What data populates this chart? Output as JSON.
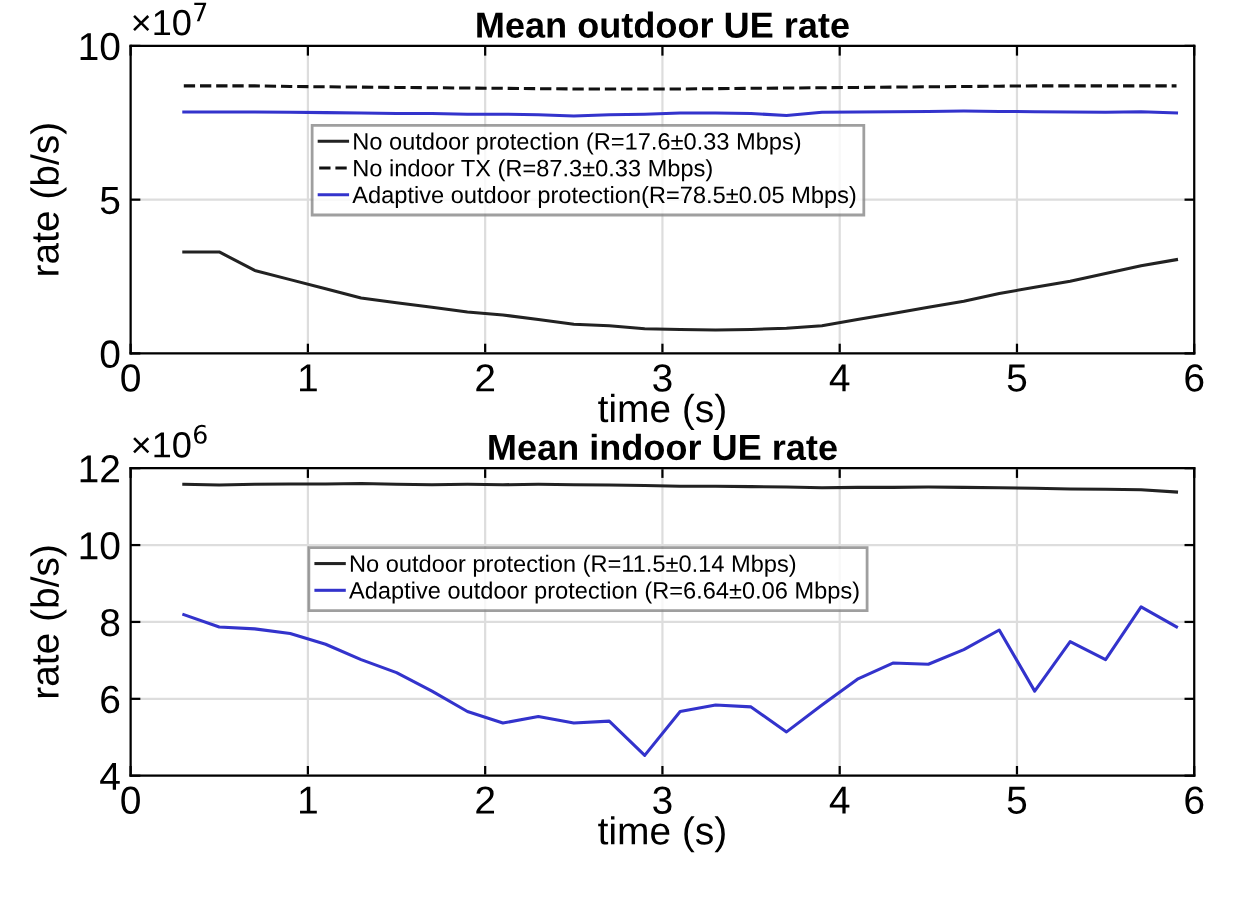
{
  "chart_data": [
    {
      "type": "line",
      "title": "Mean outdoor UE rate",
      "xlabel": "time (s)",
      "ylabel": "rate (b/s)",
      "annotations": [
        "×10$^{7}$"
      ],
      "x": [
        0.3,
        0.5,
        0.7,
        0.9,
        1.1,
        1.3,
        1.5,
        1.7,
        1.9,
        2.1,
        2.3,
        2.5,
        2.7,
        2.9,
        3.1,
        3.3,
        3.5,
        3.7,
        3.9,
        4.1,
        4.3,
        4.5,
        4.7,
        4.9,
        5.1,
        5.3,
        5.5,
        5.7,
        5.9
      ],
      "series": [
        {
          "name": "No outdoor protection (R=17.6±0.33 Mbps)",
          "color": "#222222",
          "line_style": "solid",
          "values": [
            3.3,
            3.3,
            2.7,
            2.4,
            2.1,
            1.8,
            1.65,
            1.5,
            1.35,
            1.25,
            1.1,
            0.95,
            0.9,
            0.8,
            0.78,
            0.76,
            0.78,
            0.82,
            0.9,
            1.1,
            1.3,
            1.5,
            1.7,
            1.95,
            2.15,
            2.35,
            2.6,
            2.85,
            3.05
          ]
        },
        {
          "name": "No indoor TX (R=87.3±0.33 Mbps)",
          "color": "#111111",
          "line_style": "dashed",
          "values": [
            8.7,
            8.7,
            8.7,
            8.68,
            8.67,
            8.66,
            8.65,
            8.64,
            8.63,
            8.62,
            8.61,
            8.6,
            8.6,
            8.6,
            8.6,
            8.61,
            8.62,
            8.63,
            8.64,
            8.65,
            8.66,
            8.67,
            8.68,
            8.69,
            8.7,
            8.7,
            8.7,
            8.7,
            8.7
          ]
        },
        {
          "name": "Adaptive outdoor protection(R=78.5±0.05 Mbps)",
          "color": "#3333cc",
          "line_style": "solid",
          "values": [
            7.85,
            7.85,
            7.85,
            7.84,
            7.83,
            7.82,
            7.8,
            7.8,
            7.78,
            7.78,
            7.76,
            7.72,
            7.76,
            7.78,
            7.82,
            7.82,
            7.8,
            7.74,
            7.84,
            7.85,
            7.86,
            7.87,
            7.88,
            7.87,
            7.86,
            7.85,
            7.84,
            7.86,
            7.82
          ]
        }
      ],
      "xlim": [
        0,
        6
      ],
      "xticks": [
        0,
        1,
        2,
        3,
        4,
        5,
        6
      ],
      "ylim": [
        0,
        10
      ],
      "yticks": [
        0,
        5,
        10
      ],
      "grid": true,
      "legend": "top",
      "marker": "none"
    },
    {
      "type": "line",
      "title": "Mean indoor UE rate",
      "xlabel": "time (s)",
      "ylabel": "rate (b/s)",
      "annotations": [
        "×10$^{6}$"
      ],
      "x": [
        0.3,
        0.5,
        0.7,
        0.9,
        1.1,
        1.3,
        1.5,
        1.7,
        1.9,
        2.1,
        2.3,
        2.5,
        2.7,
        2.9,
        3.1,
        3.3,
        3.5,
        3.7,
        3.9,
        4.1,
        4.3,
        4.5,
        4.7,
        4.9,
        5.1,
        5.3,
        5.5,
        5.7,
        5.9
      ],
      "series": [
        {
          "name": "No outdoor protection (R=11.5±0.14 Mbps)",
          "color": "#222222",
          "line_style": "solid",
          "values": [
            11.58,
            11.56,
            11.58,
            11.59,
            11.59,
            11.6,
            11.58,
            11.57,
            11.58,
            11.57,
            11.58,
            11.57,
            11.56,
            11.55,
            11.53,
            11.53,
            11.52,
            11.51,
            11.49,
            11.5,
            11.5,
            11.51,
            11.5,
            11.49,
            11.48,
            11.46,
            11.45,
            11.44,
            11.38
          ]
        },
        {
          "name": "Adaptive outdoor protection (R=6.64±0.06 Mbps)",
          "color": "#3333cc",
          "line_style": "solid",
          "values": [
            8.19,
            7.87,
            7.82,
            7.7,
            7.42,
            7.02,
            6.68,
            6.2,
            5.67,
            5.37,
            5.54,
            5.37,
            5.42,
            4.53,
            5.67,
            5.84,
            5.79,
            5.14,
            5.84,
            6.51,
            6.93,
            6.9,
            7.28,
            7.79,
            6.2,
            7.49,
            7.02,
            8.39,
            7.87
          ]
        }
      ],
      "xlim": [
        0,
        6
      ],
      "xticks": [
        0,
        1,
        2,
        3,
        4,
        5,
        6
      ],
      "ylim": [
        4,
        12
      ],
      "yticks": [
        4,
        6,
        8,
        10,
        12
      ],
      "grid": true,
      "legend": "top",
      "marker": "none"
    }
  ]
}
